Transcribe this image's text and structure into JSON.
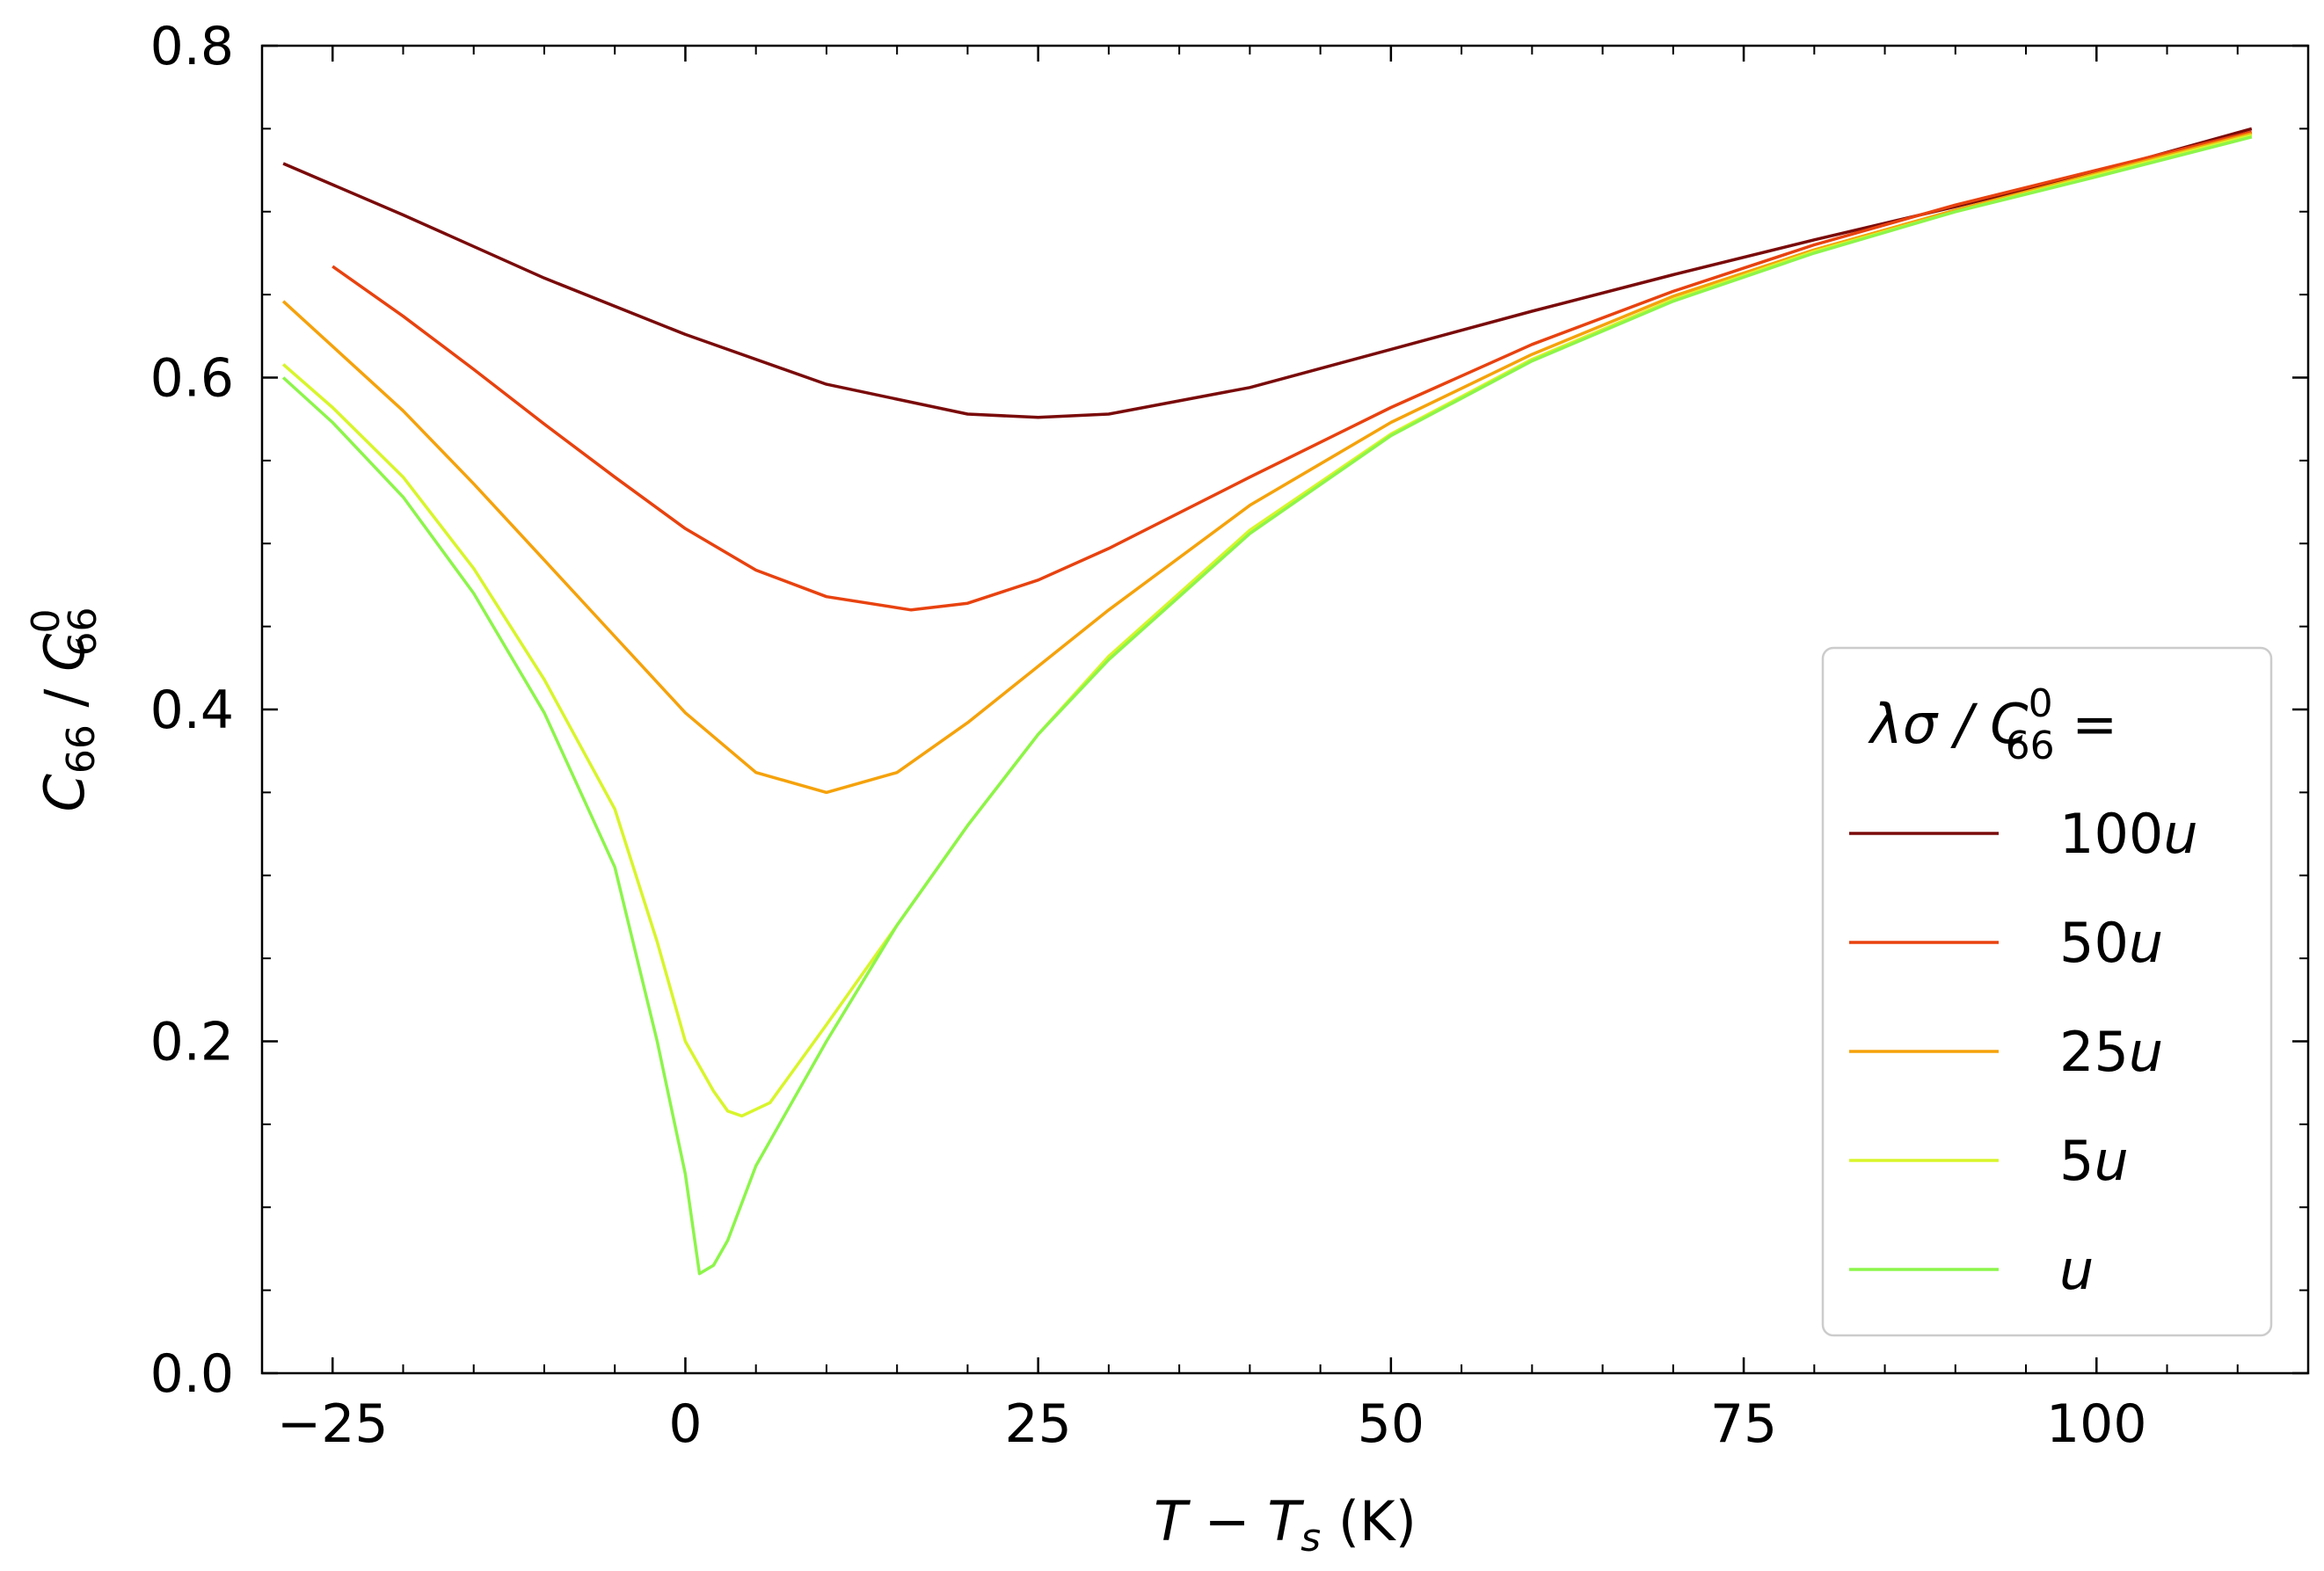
{
  "chart_data": {
    "type": "line",
    "xlabel": {
      "main": "T − T",
      "sub": "s",
      "unit": " (K)"
    },
    "ylabel": {
      "num": "C",
      "num_sub": "66",
      "sep": " / ",
      "den": "C",
      "den_sub": "66",
      "den_sup": "0"
    },
    "xlim": [
      -30,
      115
    ],
    "ylim": [
      0.0,
      0.8
    ],
    "xticks": [
      -25,
      0,
      25,
      50,
      75,
      100
    ],
    "xtick_labels": [
      "−25",
      "0",
      "25",
      "50",
      "75",
      "100"
    ],
    "yticks": [
      0.0,
      0.2,
      0.4,
      0.6,
      0.8
    ],
    "ytick_labels": [
      "0.0",
      "0.2",
      "0.4",
      "0.6",
      "0.8"
    ],
    "legend": {
      "title": {
        "pre": "λσ / C",
        "sub": "66",
        "sup": "0",
        "post": " ="
      },
      "placement": "lower-right"
    },
    "series": [
      {
        "name": "100u",
        "color": "#7a0a0a",
        "x": [
          -28.5,
          -20,
          -10,
          0,
          10,
          20,
          25,
          30,
          40,
          50,
          60,
          70,
          80,
          90,
          100,
          111
        ],
        "y": [
          0.729,
          0.698,
          0.66,
          0.626,
          0.596,
          0.578,
          0.576,
          0.578,
          0.594,
          0.617,
          0.64,
          0.662,
          0.683,
          0.703,
          0.724,
          0.75
        ]
      },
      {
        "name": "50u",
        "color": "#e8420f",
        "x": [
          -25,
          -20,
          -15,
          -10,
          -5,
          0,
          5,
          10,
          16,
          20,
          25,
          30,
          40,
          50,
          60,
          70,
          80,
          90,
          100,
          111
        ],
        "y": [
          0.667,
          0.637,
          0.605,
          0.572,
          0.54,
          0.509,
          0.484,
          0.468,
          0.46,
          0.464,
          0.478,
          0.497,
          0.54,
          0.582,
          0.62,
          0.652,
          0.68,
          0.704,
          0.725,
          0.748
        ]
      },
      {
        "name": "25u",
        "color": "#f5a20a",
        "x": [
          -28.5,
          -20,
          -15,
          -10,
          -5,
          0,
          5,
          10,
          15,
          20,
          25,
          30,
          40,
          50,
          60,
          70,
          80,
          90,
          100,
          111
        ],
        "y": [
          0.646,
          0.58,
          0.536,
          0.49,
          0.444,
          0.398,
          0.362,
          0.35,
          0.362,
          0.392,
          0.426,
          0.46,
          0.523,
          0.573,
          0.614,
          0.649,
          0.677,
          0.701,
          0.723,
          0.747
        ]
      },
      {
        "name": "5u",
        "color": "#d8f52a",
        "x": [
          -28.5,
          -25,
          -20,
          -15,
          -10,
          -5,
          -2,
          0,
          2,
          3,
          4,
          6,
          10,
          15,
          20,
          25,
          30,
          40,
          50,
          60,
          70,
          80,
          90,
          100,
          111
        ],
        "y": [
          0.608,
          0.582,
          0.54,
          0.485,
          0.418,
          0.34,
          0.26,
          0.2,
          0.17,
          0.158,
          0.155,
          0.163,
          0.21,
          0.27,
          0.33,
          0.385,
          0.432,
          0.508,
          0.566,
          0.611,
          0.647,
          0.676,
          0.7,
          0.722,
          0.746
        ]
      },
      {
        "name": "u",
        "color": "#8cf54a",
        "x": [
          -28.5,
          -25,
          -20,
          -15,
          -10,
          -5,
          -2,
          0,
          1,
          2,
          3,
          5,
          10,
          15,
          20,
          25,
          30,
          40,
          50,
          60,
          70,
          80,
          90,
          100,
          111
        ],
        "y": [
          0.6,
          0.573,
          0.528,
          0.47,
          0.398,
          0.305,
          0.2,
          0.12,
          0.06,
          0.065,
          0.08,
          0.125,
          0.2,
          0.27,
          0.33,
          0.385,
          0.43,
          0.506,
          0.565,
          0.61,
          0.646,
          0.675,
          0.7,
          0.721,
          0.745
        ]
      }
    ]
  }
}
